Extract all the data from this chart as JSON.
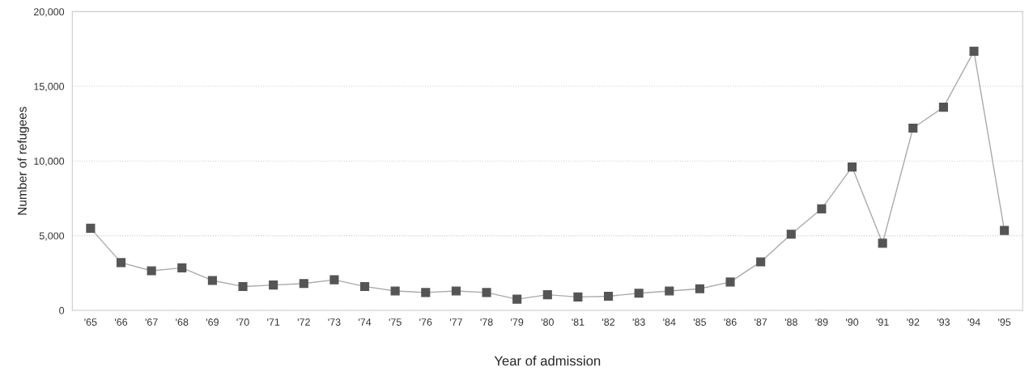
{
  "chart_data": {
    "type": "line",
    "xlabel": "Year of admission",
    "ylabel": "Number of refugees",
    "categories": [
      "'65",
      "'66",
      "'67",
      "'68",
      "'69",
      "'70",
      "'71",
      "'72",
      "'73",
      "'74",
      "'75",
      "'76",
      "'77",
      "'78",
      "'79",
      "'80",
      "'81",
      "'82",
      "'83",
      "'84",
      "'85",
      "'86",
      "'87",
      "'88",
      "'89",
      "'90",
      "'91",
      "'92",
      "'93",
      "'94",
      "'95"
    ],
    "series": [
      {
        "color": "#555555",
        "values": [
          5500,
          3200,
          2650,
          2850,
          2000,
          1600,
          1700,
          1800,
          2050,
          1600,
          1300,
          1200,
          1300,
          1200,
          750,
          1050,
          900,
          950,
          1150,
          1300,
          1450,
          1900,
          3250,
          5100,
          6800,
          9600,
          4500,
          12200,
          13600,
          17350,
          5350
        ]
      }
    ],
    "ylim": [
      0,
      20000
    ],
    "yticks": [
      {
        "value": 0,
        "label": "0"
      },
      {
        "value": 5000,
        "label": "5,000"
      },
      {
        "value": 10000,
        "label": "10,000"
      },
      {
        "value": 15000,
        "label": "15,000"
      },
      {
        "value": 20000,
        "label": "20,000"
      }
    ],
    "grid": "y",
    "marker": "square",
    "line_style": "solid",
    "legend": false
  }
}
